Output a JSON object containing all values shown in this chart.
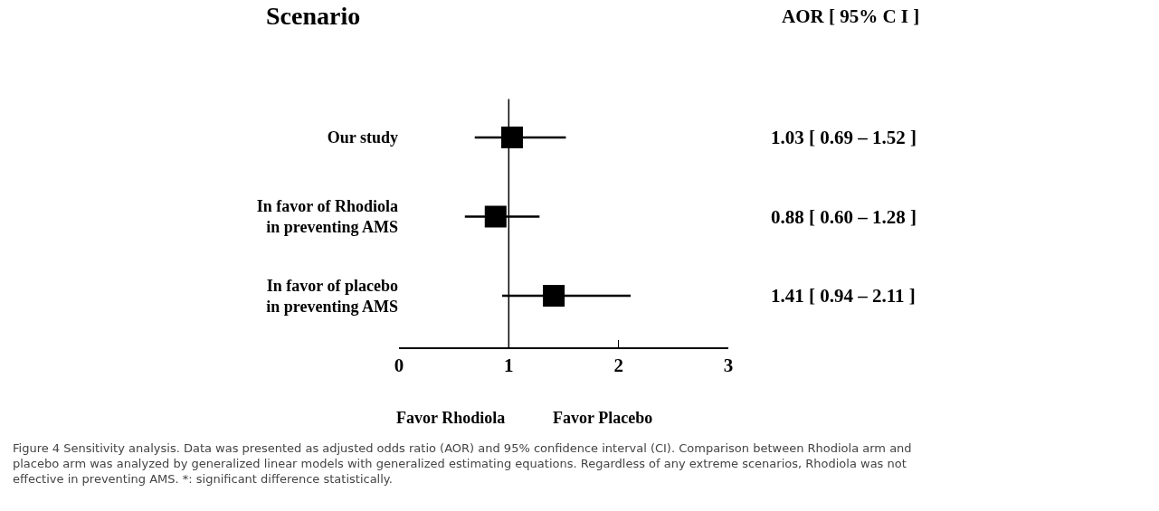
{
  "chart_data": {
    "type": "scatter",
    "orientation": "horizontal",
    "categories": [
      "Our study",
      "In favor of Rhodiola\nin preventing AMS",
      "In favor of placebo\nin preventing AMS"
    ],
    "values": [
      1.03,
      0.88,
      1.41
    ],
    "errors": [
      [
        0.69,
        1.52
      ],
      [
        0.6,
        1.28
      ],
      [
        0.94,
        2.11
      ]
    ],
    "value_labels": [
      "1.03 [ 0.69 – 1.52 ]",
      "0.88 [ 0.60 – 1.28 ]",
      "1.41 [ 0.94 – 2.11 ]"
    ],
    "color": "#000000",
    "marker": "square",
    "xlim": [
      0,
      3
    ],
    "xticks": [
      0,
      1,
      2,
      3
    ],
    "ref_lines": [
      {
        "axis": "x",
        "value": 1,
        "color": "#000000"
      }
    ],
    "legend": false,
    "annotations": [
      "Scenario",
      "AOR [ 95% C I ]",
      "Favor Rhodiola",
      "Favor Placebo",
      "Figure 4 Sensitivity analysis. Data was presented as adjusted odds ratio (AOR) and 95% confidence interval (CI). Comparison between Rhodiola arm and placebo arm was analyzed by generalized linear models with generalized estimating equations. Regardless of any extreme scenarios, Rhodiola was not effective in preventing AMS. *: significant difference statistically."
    ]
  }
}
